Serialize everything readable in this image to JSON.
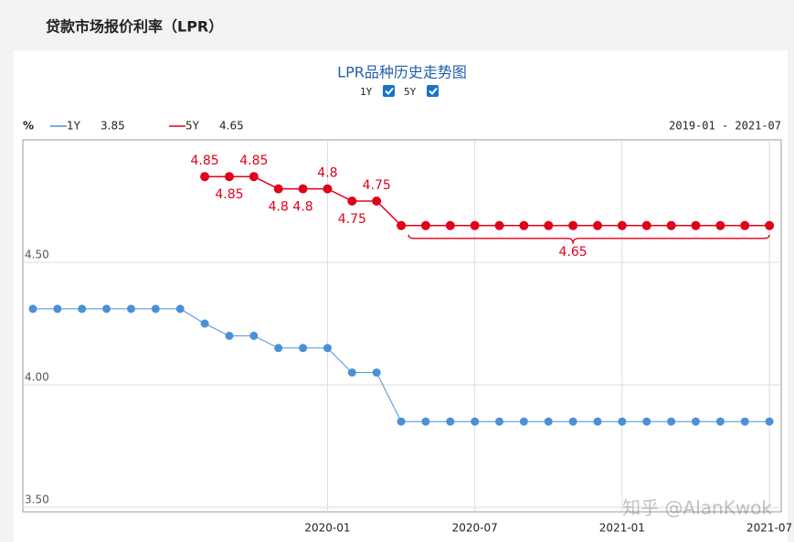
{
  "header": {
    "title": "贷款市场报价利率（LPR）"
  },
  "chart_data": {
    "type": "line",
    "title": "LPR品种历史走势图",
    "y_label": "%",
    "range_label": "2019-01 - 2021-07",
    "watermark": "知乎 @AlanKwok",
    "x": [
      "2019-01",
      "2019-02",
      "2019-03",
      "2019-04",
      "2019-05",
      "2019-06",
      "2019-07",
      "2019-08",
      "2019-09",
      "2019-10",
      "2019-11",
      "2019-12",
      "2020-01",
      "2020-02",
      "2020-03",
      "2020-04",
      "2020-05",
      "2020-06",
      "2020-07",
      "2020-08",
      "2020-09",
      "2020-10",
      "2020-11",
      "2020-12",
      "2021-01",
      "2021-02",
      "2021-03",
      "2021-04",
      "2021-05",
      "2021-06",
      "2021-07"
    ],
    "xticks": [
      "2020-01",
      "2020-07",
      "2021-01",
      "2021-07"
    ],
    "series": [
      {
        "name": "1Y",
        "color": "#4a90d9",
        "values": [
          4.31,
          4.31,
          4.31,
          4.31,
          4.31,
          4.31,
          4.31,
          4.25,
          4.2,
          4.2,
          4.15,
          4.15,
          4.15,
          4.05,
          4.05,
          3.85,
          3.85,
          3.85,
          3.85,
          3.85,
          3.85,
          3.85,
          3.85,
          3.85,
          3.85,
          3.85,
          3.85,
          3.85,
          3.85,
          3.85,
          3.85
        ]
      },
      {
        "name": "5Y",
        "color": "#e0001a",
        "values": [
          null,
          null,
          null,
          null,
          null,
          null,
          null,
          4.85,
          4.85,
          4.85,
          4.8,
          4.8,
          4.8,
          4.75,
          4.75,
          4.65,
          4.65,
          4.65,
          4.65,
          4.65,
          4.65,
          4.65,
          4.65,
          4.65,
          4.65,
          4.65,
          4.65,
          4.65,
          4.65,
          4.65,
          4.65
        ],
        "value_labels": [
          null,
          null,
          null,
          null,
          null,
          null,
          null,
          "4.85",
          "4.85",
          "4.85",
          "4.8",
          "4.8",
          "4.8",
          "4.75",
          "4.75",
          null,
          null,
          null,
          null,
          null,
          null,
          null,
          "4.65",
          null,
          null,
          null,
          null,
          null,
          null,
          null,
          null
        ]
      }
    ],
    "ylim": [
      3.5,
      5.0
    ],
    "yticks": [
      {
        "value": 3.5,
        "label": "3.50"
      },
      {
        "value": 4.0,
        "label": "4.00"
      },
      {
        "value": 4.5,
        "label": "4.50"
      }
    ],
    "grid": true
  }
}
